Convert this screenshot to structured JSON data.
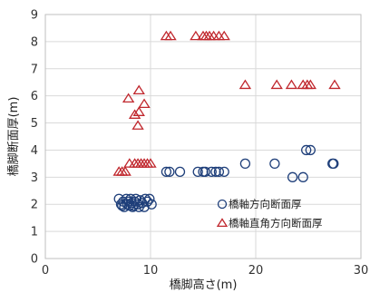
{
  "chart_data": {
    "type": "scatter",
    "xlabel": "橋脚高さ(m)",
    "ylabel": "橋脚断面厚(m)",
    "xlim": [
      0,
      30
    ],
    "ylim": [
      0,
      9
    ],
    "xticks": [
      "0",
      "10",
      "20",
      "30"
    ],
    "yticks": [
      "0",
      "1",
      "2",
      "3",
      "4",
      "5",
      "6",
      "7",
      "8",
      "9"
    ],
    "grid": true,
    "legend_position": "inside-right",
    "series": [
      {
        "name": "橋軸方向断面厚",
        "marker": "circle",
        "color": "#1f3f7a",
        "points": [
          [
            7.0,
            2.2
          ],
          [
            7.2,
            2.0
          ],
          [
            7.4,
            2.1
          ],
          [
            7.5,
            1.9
          ],
          [
            7.7,
            2.2
          ],
          [
            7.8,
            2.0
          ],
          [
            7.9,
            2.1
          ],
          [
            8.0,
            1.95
          ],
          [
            8.1,
            2.2
          ],
          [
            8.2,
            2.05
          ],
          [
            8.3,
            1.9
          ],
          [
            8.5,
            2.1
          ],
          [
            8.6,
            2.2
          ],
          [
            8.8,
            2.0
          ],
          [
            8.9,
            1.9
          ],
          [
            9.0,
            2.15
          ],
          [
            9.2,
            2.05
          ],
          [
            9.4,
            1.9
          ],
          [
            9.5,
            2.2
          ],
          [
            9.7,
            2.1
          ],
          [
            9.9,
            2.2
          ],
          [
            10.1,
            2.0
          ],
          [
            7.3,
            1.95
          ],
          [
            8.4,
            1.95
          ],
          [
            11.5,
            3.2
          ],
          [
            11.8,
            3.2
          ],
          [
            12.8,
            3.2
          ],
          [
            14.5,
            3.2
          ],
          [
            15.0,
            3.2
          ],
          [
            15.2,
            3.2
          ],
          [
            15.8,
            3.2
          ],
          [
            16.2,
            3.2
          ],
          [
            16.5,
            3.2
          ],
          [
            17.0,
            3.2
          ],
          [
            19.0,
            3.5
          ],
          [
            21.8,
            3.5
          ],
          [
            23.5,
            3.0
          ],
          [
            24.5,
            3.0
          ],
          [
            24.8,
            4.0
          ],
          [
            25.2,
            4.0
          ],
          [
            27.3,
            3.5
          ],
          [
            27.4,
            3.5
          ]
        ]
      },
      {
        "name": "橋軸直角方向断面厚",
        "marker": "triangle",
        "color": "#c0272d",
        "points": [
          [
            7.0,
            3.2
          ],
          [
            7.3,
            3.2
          ],
          [
            7.6,
            3.2
          ],
          [
            8.0,
            3.5
          ],
          [
            8.5,
            3.5
          ],
          [
            8.8,
            3.5
          ],
          [
            9.1,
            3.5
          ],
          [
            9.4,
            3.5
          ],
          [
            9.7,
            3.5
          ],
          [
            10.0,
            3.5
          ],
          [
            7.9,
            5.9
          ],
          [
            8.5,
            5.3
          ],
          [
            8.8,
            4.9
          ],
          [
            8.9,
            5.4
          ],
          [
            8.9,
            6.2
          ],
          [
            9.4,
            5.7
          ],
          [
            11.5,
            8.2
          ],
          [
            11.9,
            8.2
          ],
          [
            14.3,
            8.2
          ],
          [
            15.0,
            8.2
          ],
          [
            15.3,
            8.2
          ],
          [
            15.6,
            8.2
          ],
          [
            16.0,
            8.2
          ],
          [
            16.5,
            8.2
          ],
          [
            17.0,
            8.2
          ],
          [
            19.0,
            6.4
          ],
          [
            22.0,
            6.4
          ],
          [
            23.4,
            6.4
          ],
          [
            24.5,
            6.4
          ],
          [
            24.9,
            6.4
          ],
          [
            25.2,
            6.4
          ],
          [
            27.5,
            6.4
          ]
        ]
      }
    ]
  }
}
